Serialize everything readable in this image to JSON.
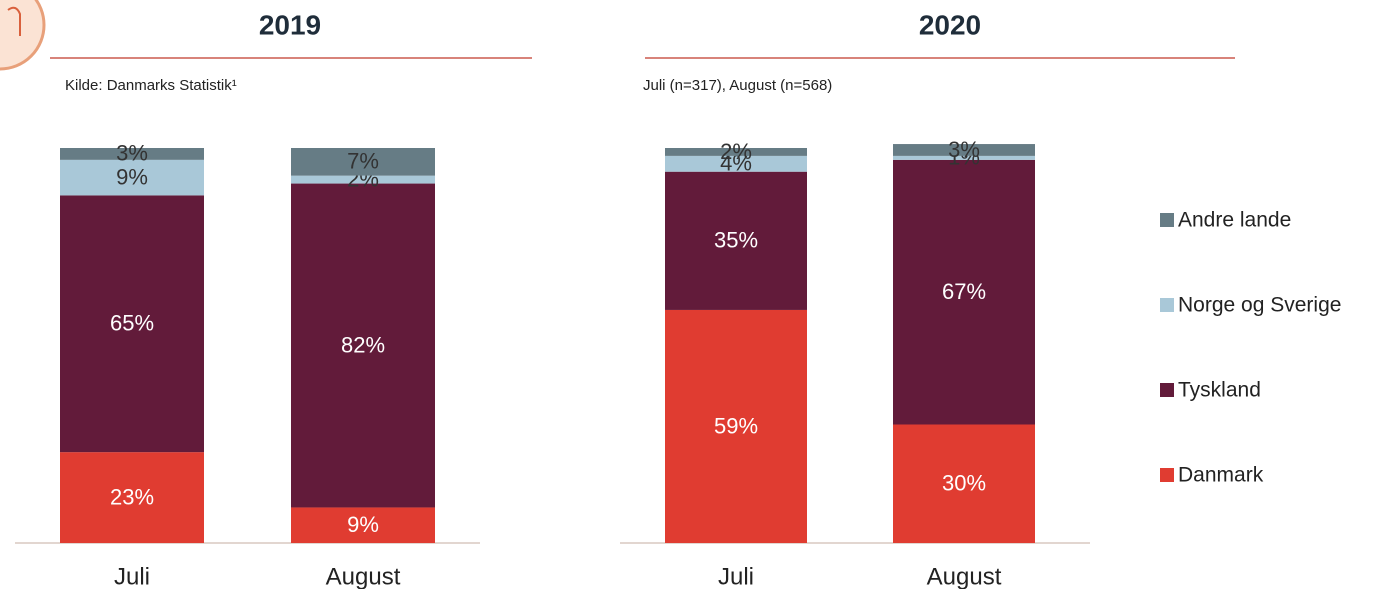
{
  "chart_data": [
    {
      "type": "stacked_bar",
      "title": "2019",
      "subtitle": "Kilde: Danmarks Statistik¹",
      "categories": [
        "Juli",
        "August"
      ],
      "ylim": [
        0,
        100
      ],
      "series": [
        {
          "name": "Danmark",
          "color": "#e03c31",
          "label_color": "#ffffff",
          "values": [
            23,
            9
          ],
          "value_labels": [
            "23%",
            "9%"
          ]
        },
        {
          "name": "Tyskland",
          "color": "#621b3a",
          "label_color": "#ffffff",
          "values": [
            65,
            82
          ],
          "value_labels": [
            "65%",
            "82%"
          ]
        },
        {
          "name": "Norge og Sverige",
          "color": "#a9c8d8",
          "label_color": "#333333",
          "values": [
            9,
            2
          ],
          "value_labels": [
            "9%",
            "2%"
          ]
        },
        {
          "name": "Andre lande",
          "color": "#667c85",
          "label_color": "#333333",
          "values": [
            3,
            7
          ],
          "value_labels": [
            "3%",
            "7%"
          ]
        }
      ]
    },
    {
      "type": "stacked_bar",
      "title": "2020",
      "subtitle": "Juli (n=317), August (n=568)",
      "categories": [
        "Juli",
        "August"
      ],
      "ylim": [
        0,
        100
      ],
      "legend": "right",
      "series": [
        {
          "name": "Danmark",
          "color": "#e03c31",
          "label_color": "#ffffff",
          "values": [
            59,
            30
          ],
          "value_labels": [
            "59%",
            "30%"
          ]
        },
        {
          "name": "Tyskland",
          "color": "#621b3a",
          "label_color": "#ffffff",
          "values": [
            35,
            67
          ],
          "value_labels": [
            "35%",
            "67%"
          ]
        },
        {
          "name": "Norge og Sverige",
          "color": "#a9c8d8",
          "label_color": "#333333",
          "values": [
            4,
            1
          ],
          "value_labels": [
            "4%",
            "1%"
          ]
        },
        {
          "name": "Andre lande",
          "color": "#667c85",
          "label_color": "#333333",
          "values": [
            2,
            3
          ],
          "value_labels": [
            "2%",
            "3%"
          ]
        }
      ]
    }
  ]
}
